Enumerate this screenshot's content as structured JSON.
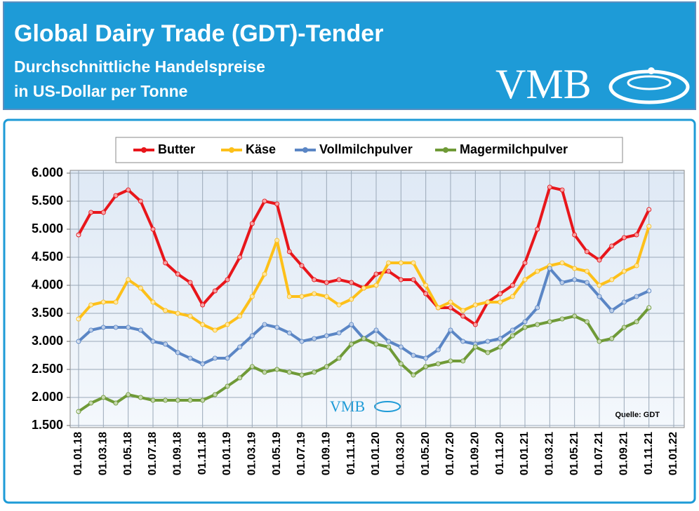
{
  "header": {
    "title": "Global Dairy Trade (GDT)-Tender",
    "subtitle_1": "Durchschnittliche Handelspreise",
    "subtitle_2": "in US-Dollar per Tonne",
    "logo": "VMB"
  },
  "chart_data": {
    "type": "line",
    "source": "Quelle:  GDT",
    "legend": "top",
    "grid": true,
    "x": [
      "01.01.18",
      "01.02.18",
      "01.03.18",
      "01.04.18",
      "01.05.18",
      "01.06.18",
      "01.07.18",
      "01.08.18",
      "01.09.18",
      "01.10.18",
      "01.11.18",
      "01.12.18",
      "01.01.19",
      "01.02.19",
      "01.03.19",
      "01.04.19",
      "01.05.19",
      "01.06.19",
      "01.07.19",
      "01.08.19",
      "01.09.19",
      "01.10.19",
      "01.11.19",
      "01.12.19",
      "01.01.20",
      "01.02.20",
      "01.03.20",
      "01.04.20",
      "01.05.20",
      "01.06.20",
      "01.07.20",
      "01.08.20",
      "01.09.20",
      "01.10.20",
      "01.11.20",
      "01.12.20",
      "01.01.21",
      "01.02.21",
      "01.03.21",
      "01.04.21",
      "01.05.21",
      "01.06.21",
      "01.07.21",
      "01.08.21",
      "01.09.21",
      "01.10.21",
      "01.11.21"
    ],
    "xlim": [
      "01.01.18",
      "01.01.22"
    ],
    "xticks": [
      "01.01.18",
      "01.03.18",
      "01.05.18",
      "01.07.18",
      "01.09.18",
      "01.11.18",
      "01.01.19",
      "01.03.19",
      "01.05.19",
      "01.07.19",
      "01.09.19",
      "01.11.19",
      "01.01.20",
      "01.03.20",
      "01.05.20",
      "01.07.20",
      "01.09.20",
      "01.11.20",
      "01.01.21",
      "01.03.21",
      "01.05.21",
      "01.07.21",
      "01.09.21",
      "01.11.21",
      "01.01.22"
    ],
    "ylim": [
      1500,
      6000
    ],
    "yticks": [
      {
        "value": 1500,
        "label": "1.500"
      },
      {
        "value": 2000,
        "label": "2.000"
      },
      {
        "value": 2500,
        "label": "2.500"
      },
      {
        "value": 3000,
        "label": "3.000"
      },
      {
        "value": 3500,
        "label": "3.500"
      },
      {
        "value": 4000,
        "label": "4.000"
      },
      {
        "value": 4500,
        "label": "4.500"
      },
      {
        "value": 5000,
        "label": "5.000"
      },
      {
        "value": 5500,
        "label": "5.500"
      },
      {
        "value": 6000,
        "label": "6.000"
      }
    ],
    "series": [
      {
        "name": "Butter",
        "color": "#e8161b",
        "values": [
          4900,
          5300,
          5300,
          5600,
          5700,
          5500,
          5000,
          4400,
          4200,
          4050,
          3650,
          3900,
          4100,
          4500,
          5100,
          5500,
          5450,
          4600,
          4350,
          4100,
          4050,
          4100,
          4050,
          3950,
          4200,
          4250,
          4100,
          4100,
          3850,
          3600,
          3600,
          3450,
          3300,
          3700,
          3850,
          4000,
          4400,
          5000,
          5750,
          5700,
          4900,
          4600,
          4450,
          4700,
          4850,
          4900,
          5350
        ]
      },
      {
        "name": "Käse",
        "color": "#fdc01a",
        "values": [
          3400,
          3650,
          3700,
          3700,
          4100,
          3950,
          3700,
          3550,
          3500,
          3450,
          3300,
          3200,
          3300,
          3450,
          3800,
          4200,
          4800,
          3800,
          3800,
          3850,
          3800,
          3650,
          3750,
          3950,
          4000,
          4400,
          4400,
          4400,
          4000,
          3600,
          3700,
          3550,
          3650,
          3700,
          3700,
          3800,
          4100,
          4250,
          4350,
          4400,
          4300,
          4250,
          4000,
          4100,
          4250,
          4350,
          5050
        ]
      },
      {
        "name": "Vollmilchpulver",
        "color": "#5b86c5",
        "values": [
          3000,
          3200,
          3250,
          3250,
          3250,
          3200,
          3000,
          2950,
          2800,
          2700,
          2600,
          2700,
          2700,
          2900,
          3100,
          3300,
          3250,
          3150,
          3000,
          3050,
          3100,
          3150,
          3300,
          3050,
          3200,
          3000,
          2900,
          2750,
          2700,
          2850,
          3200,
          3000,
          2950,
          3000,
          3050,
          3200,
          3350,
          3600,
          4300,
          4050,
          4100,
          4050,
          3800,
          3550,
          3700,
          3800,
          3900
        ]
      },
      {
        "name": "Magermilchpulver",
        "color": "#6f9a37",
        "values": [
          1750,
          1900,
          2000,
          1900,
          2050,
          2000,
          1950,
          1950,
          1950,
          1950,
          1950,
          2050,
          2200,
          2350,
          2550,
          2450,
          2500,
          2450,
          2400,
          2450,
          2550,
          2700,
          2950,
          3050,
          2950,
          2900,
          2600,
          2400,
          2550,
          2600,
          2650,
          2650,
          2900,
          2800,
          2900,
          3100,
          3250,
          3300,
          3350,
          3400,
          3450,
          3350,
          3000,
          3050,
          3250,
          3350,
          3600
        ]
      }
    ]
  }
}
